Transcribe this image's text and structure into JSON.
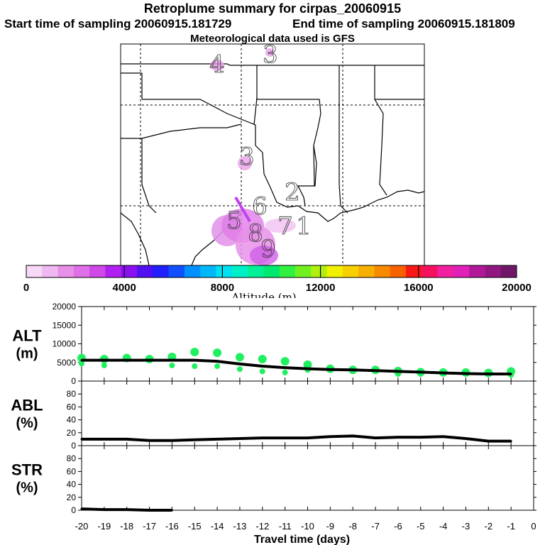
{
  "header": {
    "title": "Retroplume summary for cirpas_20060915",
    "start_label": "Start time of sampling 20060915.181729",
    "end_label": "End time of sampling 20060915.181809",
    "met_label": "Meteorological data used is GFS"
  },
  "map": {
    "day_labels": [
      "4",
      "3",
      "3",
      "2",
      "1",
      "6",
      "7",
      "5",
      "8",
      "9"
    ]
  },
  "colorbar": {
    "ticks": [
      "0",
      "4000",
      "8000",
      "12000",
      "16000",
      "20000"
    ],
    "label": "Altitude (m)",
    "colors": [
      "#f7d8f7",
      "#f0b8f0",
      "#e890e8",
      "#e070e8",
      "#d048e8",
      "#b020f0",
      "#8a10f0",
      "#5010f0",
      "#2020ff",
      "#1050ff",
      "#0090ff",
      "#00b8f8",
      "#00e0f0",
      "#00f0c8",
      "#00f098",
      "#00e870",
      "#30f040",
      "#70f020",
      "#b0f010",
      "#f0f000",
      "#f8d000",
      "#f8b000",
      "#f88a00",
      "#f86000",
      "#f81818",
      "#f81060",
      "#f020a0",
      "#e020b8",
      "#b01898",
      "#901880",
      "#701868"
    ]
  },
  "chart_data": [
    {
      "type": "line",
      "id": "ALT",
      "title": "ALT",
      "ylabel": "(m)",
      "ylim": [
        0,
        20000
      ],
      "yticks": [
        0,
        5000,
        10000,
        15000,
        20000
      ],
      "x": [
        -20,
        -19,
        -18,
        -17,
        -16,
        -15,
        -14,
        -13,
        -12,
        -11,
        -10,
        -9,
        -8,
        -7,
        -6,
        -5,
        -4,
        -3,
        -2,
        -1
      ],
      "series": [
        {
          "name": "median altitude",
          "values": [
            5600,
            5600,
            5600,
            5600,
            5600,
            5600,
            5300,
            4600,
            4000,
            3600,
            3300,
            3100,
            3000,
            2800,
            2600,
            2400,
            2200,
            2000,
            1900,
            1900
          ]
        },
        {
          "name": "upper particles",
          "values": [
            6200,
            5900,
            6200,
            5900,
            6500,
            7800,
            7600,
            6400,
            5900,
            5300,
            4400,
            3300,
            3000,
            3000,
            2700,
            2400,
            2300,
            2300,
            2200,
            2600
          ]
        },
        {
          "name": "lower particles",
          "values": [
            4700,
            4200,
            0,
            0,
            4200,
            4000,
            4000,
            3200,
            2600,
            2300,
            3000,
            0,
            0,
            0,
            1900,
            1900,
            0,
            0,
            0,
            1600
          ]
        }
      ]
    },
    {
      "type": "line",
      "id": "ABL",
      "title": "ABL",
      "ylabel": "(%)",
      "ylim": [
        0,
        100
      ],
      "yticks": [
        0,
        20,
        40,
        60,
        80
      ],
      "x": [
        -20,
        -19,
        -18,
        -17,
        -16,
        -15,
        -14,
        -13,
        -12,
        -11,
        -10,
        -9,
        -8,
        -7,
        -6,
        -5,
        -4,
        -3,
        -2,
        -1
      ],
      "values": [
        10,
        10,
        10,
        8,
        8,
        9,
        10,
        11,
        12,
        12,
        12,
        14,
        15,
        12,
        13,
        13,
        14,
        11,
        7,
        7
      ]
    },
    {
      "type": "line",
      "id": "STR",
      "title": "STR",
      "ylabel": "(%)",
      "ylim": [
        0,
        100
      ],
      "yticks": [
        0,
        20,
        40,
        60,
        80
      ],
      "x": [
        -20,
        -19,
        -18,
        -17,
        -16
      ],
      "values": [
        2,
        1,
        1,
        0,
        0
      ]
    }
  ],
  "xaxis": {
    "ticks": [
      "-20",
      "-19",
      "-18",
      "-17",
      "-16",
      "-15",
      "-14",
      "-13",
      "-12",
      "-11",
      "-10",
      "-9",
      "-8",
      "-7",
      "-6",
      "-5",
      "-4",
      "-3",
      "-2",
      "-1",
      "0"
    ],
    "label": "Travel time (days)",
    "range": [
      -20,
      0
    ]
  }
}
